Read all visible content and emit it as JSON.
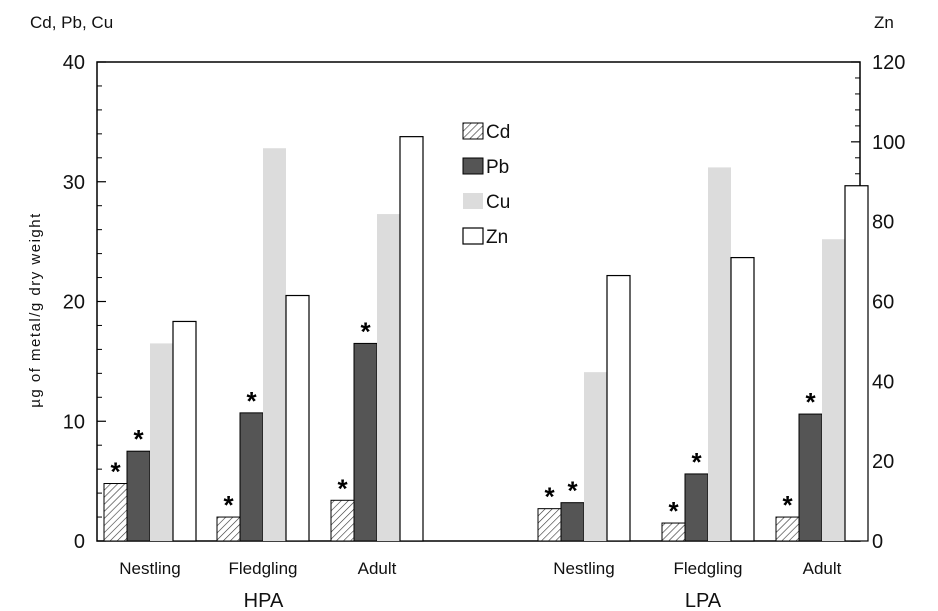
{
  "chart_data": {
    "type": "bar",
    "left_axis_title": "Cd, Pb, Cu",
    "right_axis_title": "Zn",
    "ylabel": "µg of metal/g dry weight",
    "ylim_left": [
      0,
      40
    ],
    "ylim_right": [
      0,
      120
    ],
    "yticks_left": [
      "0",
      "10",
      "20",
      "30",
      "40"
    ],
    "yticks_right": [
      "0",
      "20",
      "40",
      "60",
      "80",
      "100",
      "120"
    ],
    "groups": [
      {
        "label": "HPA",
        "categories": [
          {
            "label": "Nestling",
            "Cd": 4.8,
            "Pb": 7.5,
            "Cu": 16.5,
            "Zn": 55,
            "stars": [
              "Cd",
              "Pb"
            ]
          },
          {
            "label": "Fledgling",
            "Cd": 2.0,
            "Pb": 10.7,
            "Cu": 32.8,
            "Zn": 61.5,
            "stars": [
              "Cd",
              "Pb"
            ]
          },
          {
            "label": "Adult",
            "Cd": 3.4,
            "Pb": 16.5,
            "Cu": 27.3,
            "Zn": 101.3,
            "stars": [
              "Cd",
              "Pb"
            ]
          }
        ]
      },
      {
        "label": "LPA",
        "categories": [
          {
            "label": "Nestling",
            "Cd": 2.7,
            "Pb": 3.2,
            "Cu": 14.1,
            "Zn": 66.5,
            "stars": [
              "Cd",
              "Pb"
            ]
          },
          {
            "label": "Fledgling",
            "Cd": 1.5,
            "Pb": 5.6,
            "Cu": 31.2,
            "Zn": 71,
            "stars": [
              "Cd",
              "Pb"
            ]
          },
          {
            "label": "Adult",
            "Cd": 2.0,
            "Pb": 10.6,
            "Cu": 25.2,
            "Zn": 89,
            "stars": [
              "Cd",
              "Pb"
            ]
          }
        ]
      }
    ],
    "series": [
      {
        "name": "Cd",
        "axis": "left",
        "style": "hatched",
        "color": "#000000"
      },
      {
        "name": "Pb",
        "axis": "left",
        "style": "solid",
        "color": "#555555"
      },
      {
        "name": "Cu",
        "axis": "left",
        "style": "solid",
        "color": "#dcdcdc"
      },
      {
        "name": "Zn",
        "axis": "right",
        "style": "outline",
        "color": "#ffffff"
      }
    ],
    "significance_marker": "*",
    "legend_position": "top-center",
    "grid": false
  }
}
